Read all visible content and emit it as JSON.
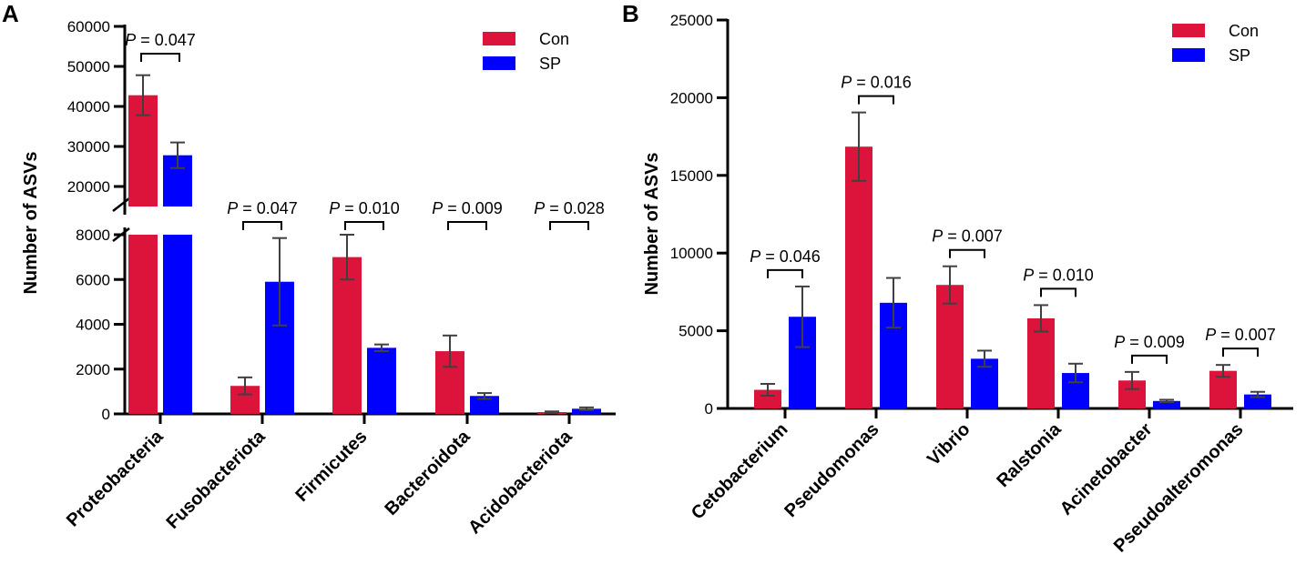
{
  "colors": {
    "con": "#dc143c",
    "sp": "#0000ff",
    "axis": "#000000",
    "error": "#404040"
  },
  "chart_data": [
    {
      "panel": "A",
      "type": "bar",
      "ylabel": "Number of ASVs",
      "y_break": {
        "lower_range": [
          0,
          8000
        ],
        "upper_range": [
          15000,
          60000
        ]
      },
      "lower_ticks": [
        0,
        2000,
        4000,
        6000,
        8000
      ],
      "upper_ticks": [
        20000,
        30000,
        40000,
        50000,
        60000
      ],
      "categories": [
        "Proteobacteria",
        "Fusobacteriota",
        "Firmicutes",
        "Bacteroidota",
        "Acidobacteriota"
      ],
      "series": [
        {
          "name": "Con",
          "values": [
            42800,
            1250,
            7000,
            2800,
            80
          ],
          "errors": [
            5000,
            380,
            1000,
            700,
            30
          ]
        },
        {
          "name": "SP",
          "values": [
            27800,
            5900,
            2950,
            800,
            230
          ],
          "errors": [
            3200,
            1950,
            150,
            130,
            60
          ]
        }
      ],
      "p_values": [
        "P = 0.047",
        "P = 0.047",
        "P = 0.010",
        "P = 0.009",
        "P = 0.028"
      ],
      "legend": [
        "Con",
        "SP"
      ]
    },
    {
      "panel": "B",
      "type": "bar",
      "ylabel": "Number of ASVs",
      "ylim": [
        0,
        25000
      ],
      "ticks": [
        0,
        5000,
        10000,
        15000,
        20000,
        25000
      ],
      "categories": [
        "Cetobacterium",
        "Pseudomonas",
        "Vibrio",
        "Ralstonia",
        "Acinetobacter",
        "Pseudoalteromonas"
      ],
      "series": [
        {
          "name": "Con",
          "values": [
            1200,
            16850,
            7950,
            5800,
            1800,
            2420
          ],
          "errors": [
            380,
            2200,
            1200,
            850,
            550,
            380
          ]
        },
        {
          "name": "SP",
          "values": [
            5900,
            6800,
            3200,
            2280,
            480,
            900
          ],
          "errors": [
            1950,
            1600,
            520,
            600,
            80,
            170
          ]
        }
      ],
      "p_values": [
        "P = 0.046",
        "P = 0.016",
        "P = 0.007",
        "P = 0.010",
        "P = 0.009",
        "P = 0.007"
      ],
      "legend": [
        "Con",
        "SP"
      ]
    }
  ]
}
